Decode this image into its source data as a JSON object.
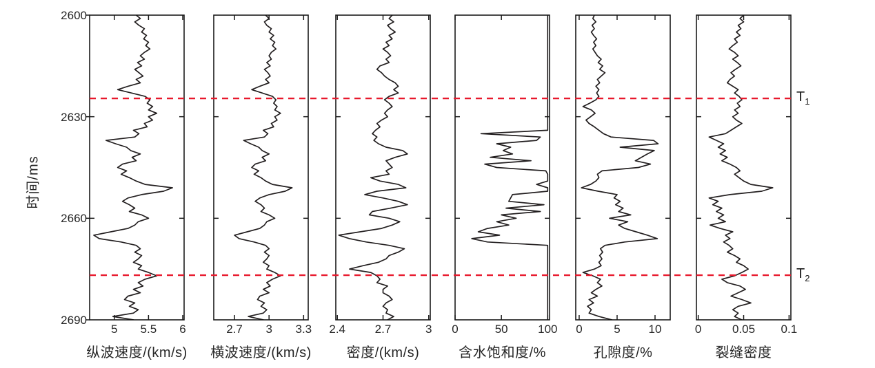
{
  "figure": {
    "background": "#ffffff",
    "colors": {
      "curve": "#231f20",
      "axis": "#1a1a1a",
      "text": "#262626",
      "marker_line": "#e8192d"
    }
  },
  "chart_data": {
    "type": "line",
    "layout_hint": "six vertical well-log tracks side by side, shared inverted time axis (2600 ms top to 2690 ms bottom), box frames with inward ticks, no grid, two horizontal red dashed marker lines spanning all tracks",
    "time_axis": {
      "label": "时间/ms",
      "min": 2600,
      "max": 2690,
      "ticks": [
        "2600",
        "2630",
        "2660",
        "2690"
      ],
      "tick_values": [
        2600,
        2630,
        2660,
        2690
      ],
      "sample_start_ms": 2600,
      "sample_step_ms": 1
    },
    "markers": [
      {
        "text": "T",
        "sub": "1",
        "time_ms": 2624.6
      },
      {
        "text": "T",
        "sub": "2",
        "time_ms": 2676.8
      }
    ],
    "panels": [
      {
        "id": "p-wave-velocity",
        "xlabel": "纵波速度/(km/s)",
        "xlim": [
          4.64,
          6.02
        ],
        "xticks": [
          "5",
          "5.5",
          "6"
        ],
        "xtick_values": [
          5,
          5.5,
          6
        ],
        "values": [
          5.32,
          5.38,
          5.3,
          5.36,
          5.44,
          5.4,
          5.47,
          5.43,
          5.5,
          5.46,
          5.52,
          5.44,
          5.38,
          5.44,
          5.34,
          5.4,
          5.3,
          5.36,
          5.42,
          5.32,
          5.38,
          5.2,
          5.05,
          5.25,
          5.45,
          5.52,
          5.48,
          5.56,
          5.5,
          5.62,
          5.5,
          5.56,
          5.44,
          5.48,
          5.28,
          5.36,
          5.3,
          4.88,
          5.02,
          5.18,
          5.24,
          5.38,
          5.26,
          5.32,
          5.12,
          5.05,
          5.18,
          5.1,
          5.22,
          5.32,
          5.45,
          5.85,
          5.72,
          5.4,
          5.2,
          5.12,
          5.22,
          5.3,
          5.22,
          5.4,
          5.5,
          5.35,
          5.3,
          5.2,
          4.95,
          4.7,
          4.78,
          5.1,
          5.32,
          5.38,
          5.3,
          5.4,
          5.35,
          5.28,
          5.4,
          5.35,
          5.5,
          5.62,
          5.45,
          5.35,
          5.42,
          5.28,
          5.38,
          5.2,
          5.15,
          5.3,
          5.22,
          5.35,
          5.28,
          4.98,
          5.28
        ]
      },
      {
        "id": "s-wave-velocity",
        "xlabel": "横波速度/(km/s)",
        "xlim": [
          2.52,
          3.34
        ],
        "xticks": [
          "2.7",
          "3",
          "3.3"
        ],
        "xtick_values": [
          2.7,
          3,
          3.3
        ],
        "values": [
          2.97,
          3.0,
          2.96,
          2.98,
          3.02,
          3.0,
          3.04,
          3.01,
          3.05,
          3.03,
          3.06,
          3.02,
          3.0,
          3.02,
          2.98,
          3.01,
          2.96,
          2.99,
          3.01,
          2.97,
          3.0,
          2.92,
          2.85,
          2.94,
          3.03,
          3.06,
          3.04,
          3.07,
          3.05,
          3.1,
          3.05,
          3.07,
          3.02,
          3.04,
          2.95,
          2.99,
          2.96,
          2.78,
          2.84,
          2.91,
          2.94,
          3.0,
          2.94,
          2.97,
          2.88,
          2.85,
          2.91,
          2.87,
          2.93,
          2.97,
          3.03,
          3.2,
          3.14,
          3.0,
          2.92,
          2.88,
          2.93,
          2.96,
          2.93,
          3.0,
          3.05,
          2.98,
          2.96,
          2.92,
          2.81,
          2.7,
          2.74,
          2.87,
          2.97,
          3.0,
          2.96,
          3.0,
          2.98,
          2.95,
          3.0,
          2.98,
          3.05,
          3.1,
          3.03,
          2.98,
          3.01,
          2.95,
          3.0,
          2.92,
          2.9,
          2.96,
          2.93,
          2.98,
          2.95,
          2.82,
          2.95
        ]
      },
      {
        "id": "density",
        "xlabel": "密度/(km/s)",
        "xlim": [
          2.39,
          3.01
        ],
        "xticks": [
          "2.4",
          "2.7",
          "3"
        ],
        "xtick_values": [
          2.4,
          2.7,
          3
        ],
        "values": [
          2.76,
          2.74,
          2.77,
          2.73,
          2.75,
          2.78,
          2.74,
          2.76,
          2.72,
          2.74,
          2.7,
          2.73,
          2.75,
          2.72,
          2.74,
          2.68,
          2.66,
          2.69,
          2.71,
          2.74,
          2.78,
          2.8,
          2.77,
          2.8,
          2.74,
          2.71,
          2.74,
          2.76,
          2.73,
          2.71,
          2.73,
          2.69,
          2.66,
          2.68,
          2.65,
          2.63,
          2.66,
          2.64,
          2.67,
          2.72,
          2.83,
          2.86,
          2.78,
          2.72,
          2.74,
          2.76,
          2.72,
          2.74,
          2.62,
          2.68,
          2.8,
          2.85,
          2.66,
          2.58,
          2.7,
          2.8,
          2.86,
          2.75,
          2.63,
          2.61,
          2.74,
          2.81,
          2.76,
          2.69,
          2.55,
          2.41,
          2.48,
          2.59,
          2.74,
          2.84,
          2.8,
          2.74,
          2.72,
          2.67,
          2.57,
          2.48,
          2.62,
          2.66,
          2.68,
          2.66,
          2.73,
          2.7,
          2.7,
          2.74,
          2.76,
          2.72,
          2.7,
          2.73,
          2.72,
          2.77,
          2.73
        ]
      },
      {
        "id": "water-saturation",
        "xlabel": "含水饱和度/%",
        "xlim": [
          0,
          102
        ],
        "xticks": [
          "0",
          "50",
          "100"
        ],
        "xtick_values": [
          0,
          50,
          100
        ],
        "values": [
          100,
          100,
          100,
          100,
          100,
          100,
          100,
          100,
          100,
          100,
          100,
          100,
          100,
          100,
          100,
          100,
          100,
          100,
          100,
          100,
          100,
          100,
          100,
          100,
          100,
          100,
          100,
          100,
          100,
          100,
          100,
          100,
          100,
          100,
          100,
          28,
          92,
          88,
          45,
          60,
          52,
          62,
          38,
          82,
          32,
          45,
          98,
          100,
          100,
          100,
          88,
          100,
          100,
          62,
          60,
          58,
          96,
          55,
          92,
          50,
          66,
          45,
          58,
          35,
          25,
          48,
          18,
          35,
          100,
          100,
          100,
          100,
          100,
          100,
          100,
          100,
          100,
          100,
          100,
          100,
          100,
          100,
          100,
          100,
          100,
          100,
          100,
          100,
          100,
          100,
          100
        ]
      },
      {
        "id": "porosity",
        "xlabel": "孔隙度/%",
        "xlim": [
          -0.45,
          12.0
        ],
        "xticks": [
          "0",
          "5",
          "10"
        ],
        "xtick_values": [
          0,
          5,
          10
        ],
        "values": [
          2.0,
          1.8,
          2.2,
          1.7,
          2.0,
          1.6,
          1.9,
          2.3,
          1.9,
          2.2,
          1.8,
          2.1,
          2.4,
          2.9,
          2.5,
          3.1,
          2.7,
          3.4,
          2.9,
          2.4,
          2.7,
          2.2,
          2.6,
          2.3,
          2.6,
          2.2,
          1.4,
          0.5,
          1.6,
          2.1,
          1.5,
          0.9,
          1.3,
          2.0,
          2.6,
          3.2,
          4.2,
          9.8,
          10.4,
          5.4,
          9.9,
          9.0,
          8.2,
          7.4,
          9.4,
          7.8,
          3.0,
          2.4,
          2.6,
          2.2,
          1.5,
          0.3,
          2.5,
          5.0,
          4.6,
          5.4,
          4.8,
          5.8,
          5.2,
          6.8,
          4.0,
          6.4,
          5.2,
          6.0,
          7.5,
          9.0,
          10.3,
          6.0,
          3.4,
          2.8,
          3.1,
          2.7,
          3.0,
          2.6,
          2.9,
          2.0,
          0.5,
          1.8,
          2.8,
          2.4,
          3.0,
          2.2,
          1.6,
          2.4,
          1.3,
          1.9,
          1.1,
          1.6,
          1.3,
          2.6,
          4.3
        ]
      },
      {
        "id": "fracture-density",
        "xlabel": "裂缝密度",
        "xlim": [
          -0.002,
          0.102
        ],
        "xticks": [
          "0",
          "0.05",
          "0.1"
        ],
        "xtick_values": [
          0,
          0.05,
          0.1
        ],
        "values": [
          0.05,
          0.046,
          0.05,
          0.044,
          0.047,
          0.042,
          0.046,
          0.04,
          0.043,
          0.038,
          0.034,
          0.04,
          0.044,
          0.038,
          0.043,
          0.047,
          0.041,
          0.036,
          0.04,
          0.035,
          0.032,
          0.038,
          0.044,
          0.04,
          0.045,
          0.048,
          0.043,
          0.046,
          0.04,
          0.044,
          0.038,
          0.042,
          0.048,
          0.042,
          0.036,
          0.03,
          0.012,
          0.02,
          0.028,
          0.022,
          0.03,
          0.024,
          0.032,
          0.026,
          0.035,
          0.042,
          0.046,
          0.04,
          0.045,
          0.05,
          0.058,
          0.082,
          0.07,
          0.035,
          0.012,
          0.022,
          0.016,
          0.026,
          0.02,
          0.028,
          0.022,
          0.03,
          0.013,
          0.024,
          0.038,
          0.03,
          0.035,
          0.028,
          0.034,
          0.038,
          0.032,
          0.04,
          0.046,
          0.042,
          0.05,
          0.055,
          0.048,
          0.04,
          0.026,
          0.032,
          0.046,
          0.052,
          0.044,
          0.036,
          0.048,
          0.058,
          0.044,
          0.038,
          0.044,
          0.04,
          0.048
        ]
      }
    ]
  }
}
